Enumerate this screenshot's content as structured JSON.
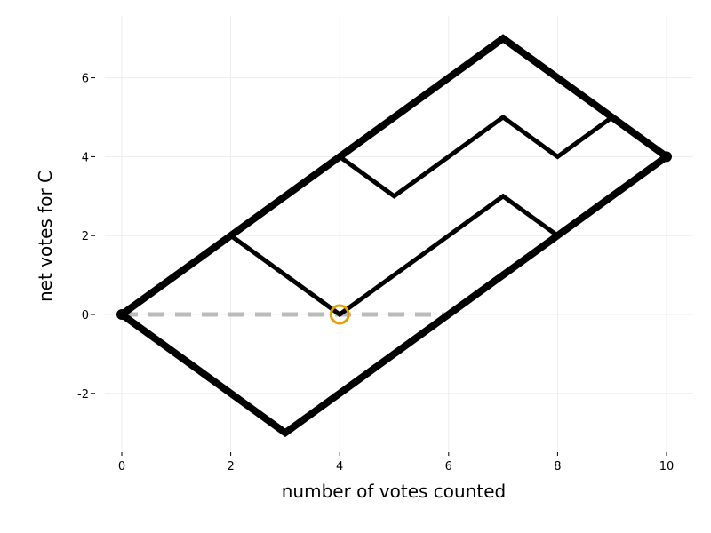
{
  "chart_data": {
    "type": "line",
    "title": "",
    "xlabel": "number of votes counted",
    "ylabel": "net votes for C",
    "xlim": [
      0,
      10
    ],
    "ylim": [
      -3,
      7
    ],
    "xticks": [
      0,
      2,
      4,
      6,
      8,
      10
    ],
    "yticks": [
      -2,
      0,
      2,
      4,
      6
    ],
    "xtick_labels": [
      "0",
      "2",
      "4",
      "6",
      "8",
      "10"
    ],
    "ytick_labels": [
      "-2",
      "0",
      "2",
      "4",
      "6"
    ],
    "grid": true,
    "series": [
      {
        "style": "thick",
        "color": "#000000",
        "points": [
          [
            0,
            0
          ],
          [
            7,
            7
          ],
          [
            10,
            4
          ]
        ]
      },
      {
        "style": "thick",
        "color": "#000000",
        "points": [
          [
            0,
            0
          ],
          [
            3,
            -3
          ],
          [
            10,
            4
          ]
        ]
      },
      {
        "style": "medium",
        "color": "#000000",
        "points": [
          [
            2,
            2
          ],
          [
            4,
            0
          ],
          [
            7,
            3
          ],
          [
            8,
            2
          ]
        ]
      },
      {
        "style": "medium",
        "color": "#000000",
        "points": [
          [
            4,
            4
          ],
          [
            5,
            3
          ],
          [
            7,
            5
          ],
          [
            8,
            4
          ],
          [
            9,
            5
          ]
        ]
      },
      {
        "style": "dashed",
        "color": "#bbbbbb",
        "points": [
          [
            0,
            0
          ],
          [
            6,
            0
          ]
        ]
      }
    ],
    "markers": [
      {
        "type": "dot",
        "x": 0,
        "y": 0,
        "color": "#000000"
      },
      {
        "type": "dot",
        "x": 10,
        "y": 4,
        "color": "#000000"
      },
      {
        "type": "ring",
        "x": 4,
        "y": 0,
        "color": "#E69F00"
      }
    ]
  }
}
